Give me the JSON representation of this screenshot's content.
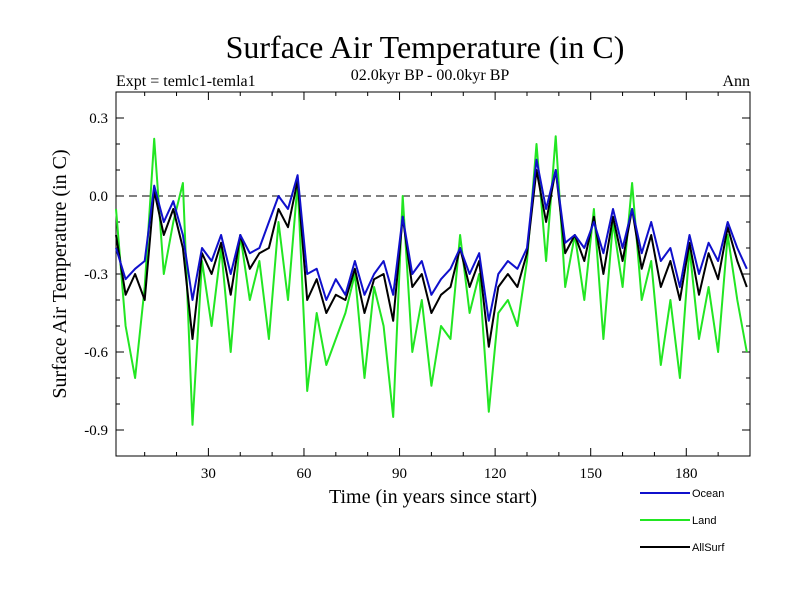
{
  "chart_data": {
    "type": "line",
    "title": "Surface Air Temperature (in C)",
    "subtitle": "02.0kyr BP - 00.0kyr BP",
    "left_label": "Expt = temlc1-temla1",
    "right_label": "Ann",
    "xlabel": "Time (in years since start)",
    "ylabel": "Surface Air Temperature (in C)",
    "xlim": [
      1,
      200
    ],
    "ylim": [
      -1.0,
      0.4
    ],
    "xticks": [
      30,
      60,
      90,
      120,
      150,
      180
    ],
    "yticks": [
      0.3,
      0.0,
      -0.3,
      -0.6,
      -0.9
    ],
    "ytick_labels": [
      "0.3",
      "0.0",
      "-0.3",
      "-0.6",
      "-0.9"
    ],
    "reference_line": 0.0,
    "legend_position": "bottom-right",
    "x": [
      1,
      4,
      7,
      10,
      13,
      16,
      19,
      22,
      25,
      28,
      31,
      34,
      37,
      40,
      43,
      46,
      49,
      52,
      55,
      58,
      61,
      64,
      67,
      70,
      73,
      76,
      79,
      82,
      85,
      88,
      91,
      94,
      97,
      100,
      103,
      106,
      109,
      112,
      115,
      118,
      121,
      124,
      127,
      130,
      133,
      136,
      139,
      142,
      145,
      148,
      151,
      154,
      157,
      160,
      163,
      166,
      169,
      172,
      175,
      178,
      181,
      184,
      187,
      190,
      193,
      196,
      199
    ],
    "series": [
      {
        "name": "Ocean",
        "color": "#1010cc",
        "values": [
          -0.2,
          -0.32,
          -0.28,
          -0.25,
          0.04,
          -0.1,
          -0.02,
          -0.15,
          -0.4,
          -0.2,
          -0.25,
          -0.15,
          -0.3,
          -0.15,
          -0.22,
          -0.2,
          -0.1,
          0.0,
          -0.05,
          0.08,
          -0.3,
          -0.28,
          -0.4,
          -0.32,
          -0.38,
          -0.25,
          -0.38,
          -0.3,
          -0.25,
          -0.38,
          -0.08,
          -0.3,
          -0.25,
          -0.38,
          -0.32,
          -0.28,
          -0.2,
          -0.3,
          -0.22,
          -0.48,
          -0.3,
          -0.25,
          -0.28,
          -0.2,
          0.14,
          -0.05,
          0.1,
          -0.18,
          -0.15,
          -0.2,
          -0.1,
          -0.22,
          -0.05,
          -0.2,
          -0.05,
          -0.22,
          -0.1,
          -0.25,
          -0.2,
          -0.35,
          -0.15,
          -0.3,
          -0.18,
          -0.25,
          -0.1,
          -0.2,
          -0.28
        ]
      },
      {
        "name": "Land",
        "color": "#22e622",
        "values": [
          -0.05,
          -0.5,
          -0.7,
          -0.35,
          0.22,
          -0.3,
          -0.1,
          0.05,
          -0.88,
          -0.25,
          -0.5,
          -0.2,
          -0.6,
          -0.15,
          -0.4,
          -0.25,
          -0.55,
          -0.1,
          -0.4,
          0.05,
          -0.75,
          -0.45,
          -0.65,
          -0.55,
          -0.45,
          -0.3,
          -0.7,
          -0.35,
          -0.5,
          -0.85,
          0.0,
          -0.6,
          -0.4,
          -0.73,
          -0.5,
          -0.55,
          -0.15,
          -0.45,
          -0.3,
          -0.83,
          -0.45,
          -0.4,
          -0.5,
          -0.25,
          0.2,
          -0.25,
          0.23,
          -0.35,
          -0.15,
          -0.4,
          -0.05,
          -0.55,
          -0.1,
          -0.35,
          0.05,
          -0.4,
          -0.25,
          -0.65,
          -0.4,
          -0.7,
          -0.2,
          -0.55,
          -0.35,
          -0.6,
          -0.15,
          -0.4,
          -0.6
        ]
      },
      {
        "name": "AllSurf",
        "color": "#000000",
        "values": [
          -0.15,
          -0.38,
          -0.3,
          -0.4,
          0.02,
          -0.15,
          -0.05,
          -0.2,
          -0.55,
          -0.22,
          -0.3,
          -0.18,
          -0.38,
          -0.15,
          -0.28,
          -0.22,
          -0.2,
          -0.05,
          -0.12,
          0.06,
          -0.4,
          -0.32,
          -0.45,
          -0.38,
          -0.4,
          -0.28,
          -0.45,
          -0.32,
          -0.3,
          -0.48,
          -0.08,
          -0.35,
          -0.3,
          -0.45,
          -0.38,
          -0.35,
          -0.2,
          -0.35,
          -0.25,
          -0.58,
          -0.35,
          -0.3,
          -0.35,
          -0.22,
          0.1,
          -0.1,
          0.1,
          -0.22,
          -0.15,
          -0.25,
          -0.08,
          -0.3,
          -0.08,
          -0.25,
          -0.05,
          -0.28,
          -0.15,
          -0.35,
          -0.25,
          -0.4,
          -0.18,
          -0.38,
          -0.22,
          -0.32,
          -0.12,
          -0.25,
          -0.35
        ]
      }
    ]
  }
}
